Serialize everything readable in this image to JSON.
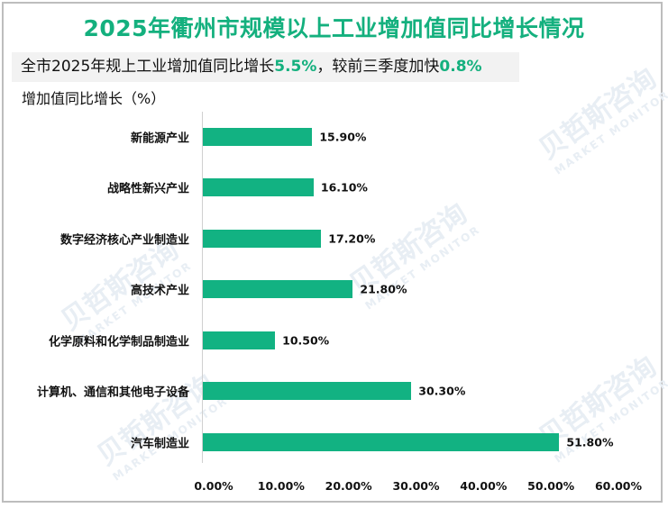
{
  "title": "2025年衢州市规模以上工业增加值同比增长情况",
  "subtitle": {
    "prefix": "全市2025年规上工业增加值同比增长",
    "value1": "5.5%",
    "middle": "，较前三季度加快",
    "value2": "0.8%"
  },
  "watermark": {
    "cn": "贝哲斯咨询",
    "en": "MARKET MONITOR"
  },
  "colors": {
    "accent": "#14b07e",
    "bar": "#12b282",
    "subtitle_bg": "#f2f2f2"
  },
  "chart_data": {
    "type": "bar",
    "orientation": "horizontal",
    "title": "2025年衢州市规模以上工业增加值同比增长情况",
    "ylabel": "增加值同比增长（%）",
    "xlabel": "",
    "categories": [
      "新能源产业",
      "战略性新兴产业",
      "数字经济核心产业制造业",
      "高技术产业",
      "化学原料和化学制品制造业",
      "计算机、通信和其他电子设备",
      "汽车制造业"
    ],
    "values": [
      15.9,
      16.1,
      17.2,
      21.8,
      10.5,
      30.3,
      51.8
    ],
    "value_labels": [
      "15.90%",
      "16.10%",
      "17.20%",
      "21.80%",
      "10.50%",
      "30.30%",
      "51.80%"
    ],
    "xlim": [
      0,
      60
    ],
    "xticks": [
      "0.00%",
      "10.00%",
      "20.00%",
      "30.00%",
      "40.00%",
      "50.00%",
      "60.00%"
    ],
    "grid": false,
    "legend": "none"
  }
}
